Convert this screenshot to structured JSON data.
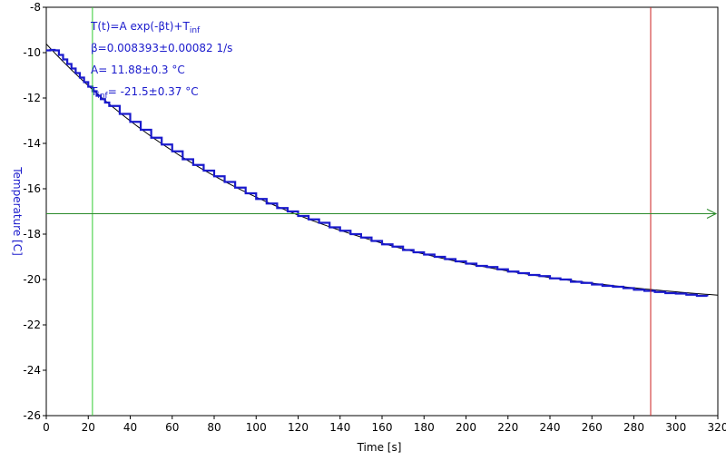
{
  "chart_data": {
    "type": "line",
    "xlabel": "Time [s]",
    "ylabel": "Temperature [C]",
    "xlim": [
      0,
      320
    ],
    "ylim": [
      -26,
      -8
    ],
    "x_ticks": [
      0,
      20,
      40,
      60,
      80,
      100,
      120,
      140,
      160,
      180,
      200,
      220,
      240,
      260,
      280,
      300,
      320
    ],
    "y_ticks": [
      -8,
      -10,
      -12,
      -14,
      -16,
      -18,
      -20,
      -22,
      -24,
      -26
    ],
    "grid": false,
    "annotation": {
      "line1_main": "T(t)=A exp(-βt)+T",
      "line1_sub": "inf",
      "line2": "β=0.008393±0.00082 1/s",
      "line3": "A= 11.88±0.3 °C",
      "line4_main": "T",
      "line4_sub": "inf",
      "line4_rest": "= -21.5±0.37 °C"
    },
    "series": [
      {
        "x": [
          0,
          2,
          4,
          6,
          8,
          10,
          12,
          14,
          16,
          18,
          20,
          22,
          24,
          26,
          28,
          30,
          35,
          40,
          45,
          50,
          55,
          60,
          65,
          70,
          75,
          80,
          85,
          90,
          95,
          100,
          105,
          110,
          115,
          120,
          125,
          130,
          135,
          140,
          145,
          150,
          155,
          160,
          165,
          170,
          175,
          180,
          185,
          190,
          195,
          200,
          205,
          210,
          215,
          220,
          225,
          230,
          235,
          240,
          245,
          250,
          255,
          260,
          265,
          270,
          275,
          280,
          285,
          290,
          295,
          300,
          305,
          310,
          315
        ],
        "y": [
          -9.9,
          -9.88,
          -9.9,
          -10.1,
          -10.3,
          -10.5,
          -10.7,
          -10.9,
          -11.1,
          -11.3,
          -11.5,
          -11.7,
          -11.9,
          -12.05,
          -12.2,
          -12.35,
          -12.7,
          -13.05,
          -13.4,
          -13.75,
          -14.05,
          -14.35,
          -14.7,
          -14.95,
          -15.2,
          -15.45,
          -15.7,
          -15.95,
          -16.2,
          -16.45,
          -16.65,
          -16.85,
          -17.0,
          -17.2,
          -17.35,
          -17.5,
          -17.7,
          -17.85,
          -18.0,
          -18.15,
          -18.3,
          -18.45,
          -18.55,
          -18.7,
          -18.8,
          -18.9,
          -19.0,
          -19.1,
          -19.2,
          -19.3,
          -19.4,
          -19.45,
          -19.55,
          -19.65,
          -19.72,
          -19.8,
          -19.85,
          -19.95,
          -20.0,
          -20.1,
          -20.15,
          -20.22,
          -20.28,
          -20.32,
          -20.38,
          -20.45,
          -20.5,
          -20.55,
          -20.6,
          -20.62,
          -20.67,
          -20.72,
          -20.74
        ]
      }
    ],
    "fit": {
      "A": 11.88,
      "beta": 0.008393,
      "T_inf": -21.5,
      "x_range": [
        0,
        320
      ]
    },
    "cursor_vertical_green_x": 22,
    "cursor_vertical_red_x": 288,
    "cursor_horizontal_green_y": -17.1
  }
}
